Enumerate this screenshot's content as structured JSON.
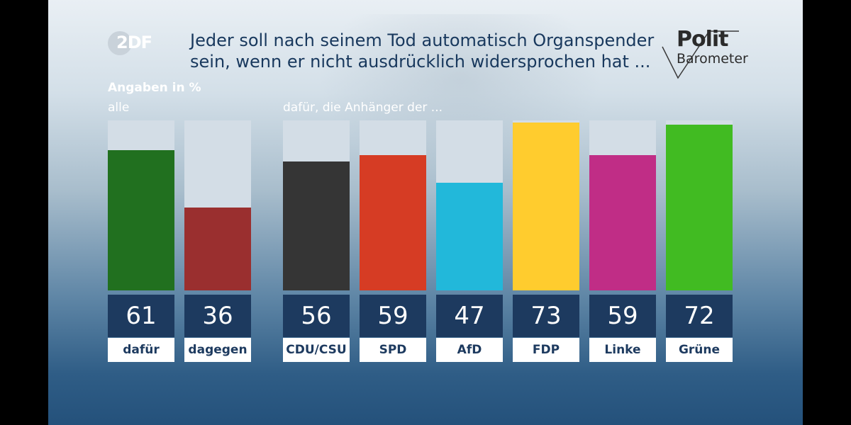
{
  "header": {
    "broadcaster": "2DF",
    "title": "Jeder soll nach seinem Tod automatisch Organspender sein, wenn er nicht ausdrücklich widersprochen hat ...",
    "brand": {
      "line1": "Polit",
      "line2": "Barometer"
    }
  },
  "labels": {
    "units": "Angaben in %",
    "all": "alle",
    "supporters": "dafür, die Anhänger der ..."
  },
  "chart_data": [
    {
      "type": "bar",
      "title": "alle",
      "ylabel": "Angaben in %",
      "ylim": [
        0,
        74
      ],
      "categories": [
        "dafür",
        "dagegen"
      ],
      "values": [
        61,
        36
      ],
      "colors": [
        "#21701f",
        "#9a2f2f"
      ]
    },
    {
      "type": "bar",
      "title": "dafür, die Anhänger der ...",
      "ylabel": "Angaben in %",
      "ylim": [
        0,
        74
      ],
      "categories": [
        "CDU/CSU",
        "SPD",
        "AfD",
        "FDP",
        "Linke",
        "Grüne"
      ],
      "values": [
        56,
        59,
        47,
        73,
        59,
        72
      ],
      "colors": [
        "#353535",
        "#d63c24",
        "#22b8da",
        "#ffcc2e",
        "#c02d86",
        "#41bb22"
      ]
    }
  ]
}
